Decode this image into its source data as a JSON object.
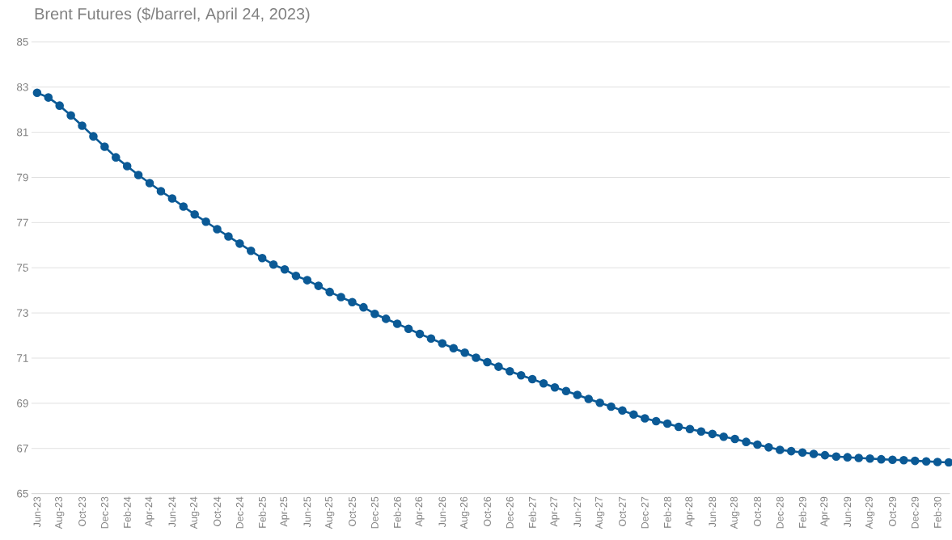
{
  "chart_data": {
    "type": "line",
    "title": "Brent Futures ($/barrel, April 24, 2023)",
    "categories": [
      "Jun-23",
      null,
      "Aug-23",
      null,
      "Oct-23",
      null,
      "Dec-23",
      null,
      "Feb-24",
      null,
      "Apr-24",
      null,
      "Jun-24",
      null,
      "Aug-24",
      null,
      "Oct-24",
      null,
      "Dec-24",
      null,
      "Feb-25",
      null,
      "Apr-25",
      null,
      "Jun-25",
      null,
      "Aug-25",
      null,
      "Oct-25",
      null,
      "Dec-25",
      null,
      "Feb-26",
      null,
      "Apr-26",
      null,
      "Jun-26",
      null,
      "Aug-26",
      null,
      "Oct-26",
      null,
      "Dec-26",
      null,
      "Feb-27",
      null,
      "Apr-27",
      null,
      "Jun-27",
      null,
      "Aug-27",
      null,
      "Oct-27",
      null,
      "Dec-27",
      null,
      "Feb-28",
      null,
      "Apr-28",
      null,
      "Jun-28",
      null,
      "Aug-28",
      null,
      "Oct-28",
      null,
      "Dec-28",
      null,
      "Feb-29",
      null,
      "Apr-29",
      null,
      "Jun-29",
      null,
      "Aug-29",
      null,
      "Oct-29",
      null,
      "Dec-29",
      null,
      "Feb-30",
      null
    ],
    "values": [
      82.75,
      82.54,
      82.18,
      81.75,
      81.29,
      80.82,
      80.36,
      79.89,
      79.5,
      79.11,
      78.75,
      78.39,
      78.07,
      77.71,
      77.36,
      77.04,
      76.71,
      76.39,
      76.07,
      75.75,
      75.43,
      75.14,
      74.93,
      74.64,
      74.45,
      74.2,
      73.93,
      73.7,
      73.48,
      73.25,
      72.96,
      72.74,
      72.52,
      72.3,
      72.07,
      71.87,
      71.65,
      71.44,
      71.24,
      71.02,
      70.82,
      70.62,
      70.42,
      70.24,
      70.07,
      69.88,
      69.7,
      69.54,
      69.37,
      69.19,
      69.02,
      68.85,
      68.68,
      68.5,
      68.33,
      68.21,
      68.1,
      67.96,
      67.86,
      67.75,
      67.64,
      67.52,
      67.42,
      67.29,
      67.17,
      67.05,
      66.94,
      66.88,
      66.82,
      66.76,
      66.7,
      66.64,
      66.61,
      66.58,
      66.55,
      66.52,
      66.5,
      66.48,
      66.45,
      66.43,
      66.4,
      66.38
    ],
    "color": "#0b5a96",
    "marker": "circle",
    "line_style": "solid",
    "grid": "y",
    "ylim": [
      65,
      85
    ],
    "yticks": [
      65,
      67,
      69,
      71,
      73,
      75,
      77,
      79,
      81,
      83,
      85
    ]
  }
}
